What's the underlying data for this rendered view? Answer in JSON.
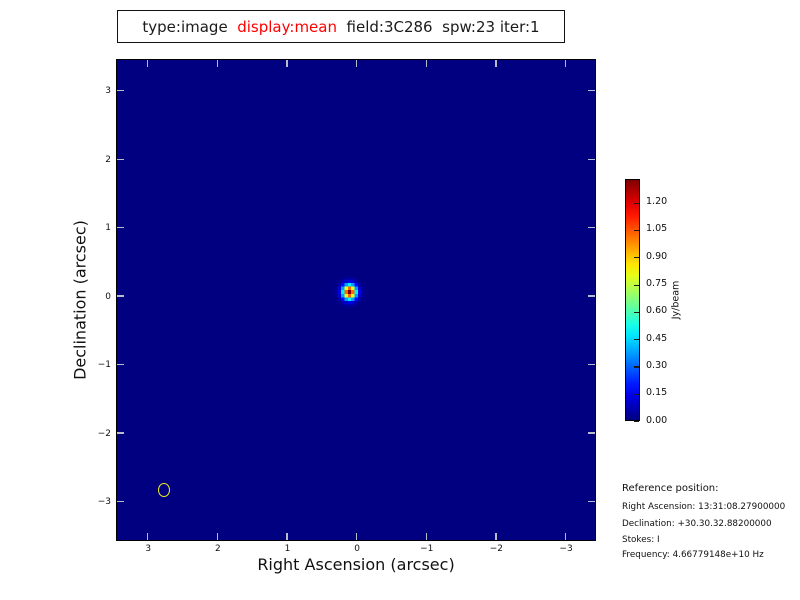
{
  "title": {
    "segments": [
      {
        "text": "type:image ",
        "color": "#1a1a1a"
      },
      {
        "text": " display:mean",
        "color": "#ff0000"
      },
      {
        "text": "  field:3C286  spw:23 iter:1",
        "color": "#1a1a1a"
      }
    ]
  },
  "chart_data": {
    "type": "heatmap",
    "title": "type:image display:mean field:3C286 spw:23 iter:1",
    "xlabel": "Right Ascension (arcsec)",
    "ylabel": "Declination (arcsec)",
    "xlim": [
      3.44,
      -3.41
    ],
    "ylim": [
      -3.55,
      3.45
    ],
    "xticks": [
      3,
      2,
      1,
      0,
      -1,
      -2,
      -3
    ],
    "yticks": [
      3,
      2,
      1,
      0,
      -1,
      -2,
      -3
    ],
    "grid": false,
    "colormap": "jet",
    "background_value": 0.0,
    "source": {
      "ra_arcsec": 0.1,
      "dec_arcsec": 0.06,
      "peak": 1.33,
      "sigma_arcsec": 0.07,
      "pixel_size_arcsec": 0.05,
      "grid_cells": 9
    },
    "beam_ellipse": {
      "ra_arcsec": 2.77,
      "dec_arcsec": -2.83,
      "width_arcsec": 0.17,
      "height_arcsec": 0.2,
      "style": "outline"
    },
    "colorbar": {
      "label": "Jy/beam",
      "vmin": 0.0,
      "vmax": 1.33,
      "ticks": [
        0.0,
        0.15,
        0.3,
        0.45,
        0.6,
        0.75,
        0.9,
        1.05,
        1.2
      ],
      "position": "right"
    }
  },
  "reference": {
    "heading": "Reference position:",
    "lines": [
      "Right Ascension: 13:31:08.27900000",
      "Declination: +30.30.32.88200000",
      "Stokes: I",
      "Frequency: 4.66779148e+10 Hz"
    ]
  },
  "colors": {
    "background_min": "#000080",
    "plot_border": "#000000",
    "tick_mark": "#b9bcc9",
    "beam_ellipse": "#ecec1c",
    "title_highlight": "#ff0000",
    "text": "#111111"
  }
}
